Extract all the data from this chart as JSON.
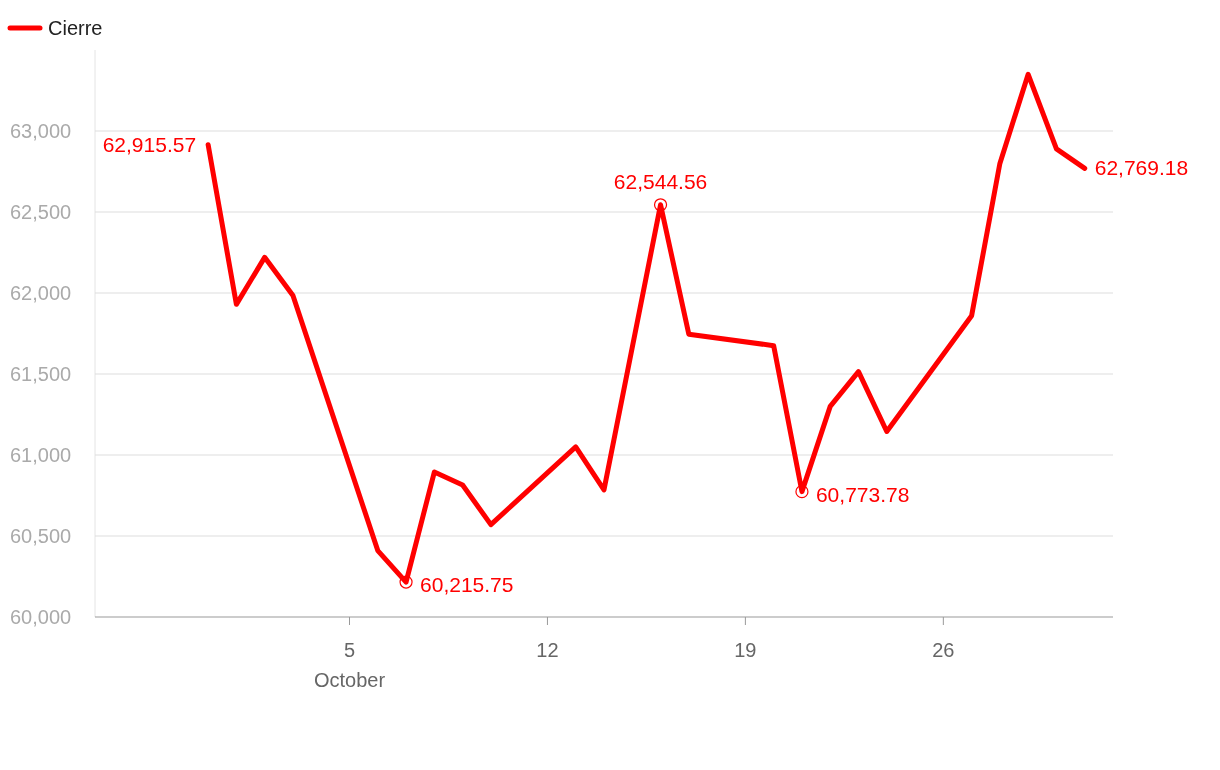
{
  "chart_data": {
    "type": "line",
    "x": [
      "--09-30",
      "--10-01",
      "--10-02",
      "--10-03",
      "--10-06",
      "--10-07",
      "--10-08",
      "--10-09",
      "--10-10",
      "--10-13",
      "--10-14",
      "--10-16",
      "--10-17",
      "--10-20",
      "--10-21",
      "--10-22",
      "--10-23",
      "--10-24",
      "--10-27",
      "--10-28",
      "--10-29",
      "--10-30",
      "--10-31"
    ],
    "series": [
      {
        "name": "Cierre",
        "color": "#ff0000",
        "values": [
          62915.57,
          61930,
          62220,
          61985,
          60410,
          60215.75,
          60895,
          60815,
          60570,
          61050,
          60785,
          62544.56,
          61745,
          61675,
          60773.78,
          61300,
          61515,
          61145,
          61860,
          62800,
          63350,
          62890,
          62769.18
        ],
        "value_labels": [
          "62,915.57",
          null,
          null,
          null,
          null,
          "60,215.75",
          null,
          null,
          null,
          null,
          null,
          "62,544.56",
          null,
          null,
          "60,773.78",
          null,
          null,
          null,
          null,
          null,
          null,
          null,
          "62,769.18"
        ]
      }
    ],
    "xlim": [
      "--09-26",
      "--11-01"
    ],
    "xticks": [
      {
        "value": "--10-05",
        "label": "5\nOctober"
      },
      {
        "value": "--10-12",
        "label": "12"
      },
      {
        "value": "--10-19",
        "label": "19"
      },
      {
        "value": "--10-26",
        "label": "26"
      }
    ],
    "ylim": [
      60000,
      63500
    ],
    "yticks": [
      {
        "value": 60000,
        "label": "60,000"
      },
      {
        "value": 60500,
        "label": "60,500"
      },
      {
        "value": 61000,
        "label": "61,000"
      },
      {
        "value": 61500,
        "label": "61,500"
      },
      {
        "value": 62000,
        "label": "62,000"
      },
      {
        "value": 62500,
        "label": "62,500"
      },
      {
        "value": 63000,
        "label": "63,000"
      }
    ],
    "grid": "y",
    "legend": "top left",
    "line_style": "solid"
  }
}
